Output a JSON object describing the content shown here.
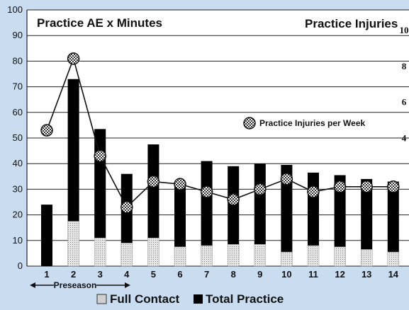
{
  "chart_data": {
    "type": "bar",
    "title": "Practice AE x Minutes",
    "right_axis_title": "Practice Injuries",
    "categories": [
      "1",
      "2",
      "3",
      "4",
      "5",
      "6",
      "7",
      "8",
      "9",
      "10",
      "11",
      "12",
      "13",
      "14"
    ],
    "ylim": [
      0,
      100
    ],
    "y_ticks": [
      "0",
      "10",
      "20",
      "30",
      "40",
      "50",
      "60",
      "70",
      "80",
      "90",
      "100"
    ],
    "y2_ticks": [
      "4",
      "6",
      "8",
      "10"
    ],
    "y2_tick_values": [
      4,
      6,
      8,
      10
    ],
    "y2_lim": [
      -2.857,
      11.43
    ],
    "series": [
      {
        "name": "Total Practice",
        "values": [
          24,
          73,
          53.5,
          36,
          47.5,
          33,
          41,
          39,
          40,
          39.5,
          36.5,
          35.5,
          34,
          33
        ],
        "color": "#000000"
      },
      {
        "name": "Full Contact",
        "values": [
          0,
          17.5,
          11,
          9,
          11,
          7.5,
          8,
          8.5,
          8.5,
          5.5,
          8,
          7.5,
          6.5,
          5.5
        ],
        "color": "#d0d0d0"
      }
    ],
    "line_series": {
      "name": "Practice Injuries per Week",
      "values": [
        4.714,
        8.714,
        3.286,
        0.429,
        1.857,
        1.714,
        1.286,
        0.857,
        1.429,
        2.0,
        1.286,
        1.571,
        1.571,
        1.571
      ],
      "plotted_on": "y2"
    },
    "annotation": "Preseason",
    "annotation_range": [
      "1",
      "4"
    ],
    "legend_position": "bottom",
    "grid": true
  },
  "colors": {
    "background": "#c9dcf0",
    "plot_background": "#ffffff",
    "bar_total": "#000000",
    "bar_full_contact": "#d0d0d0",
    "marker_fill": "#555555"
  }
}
